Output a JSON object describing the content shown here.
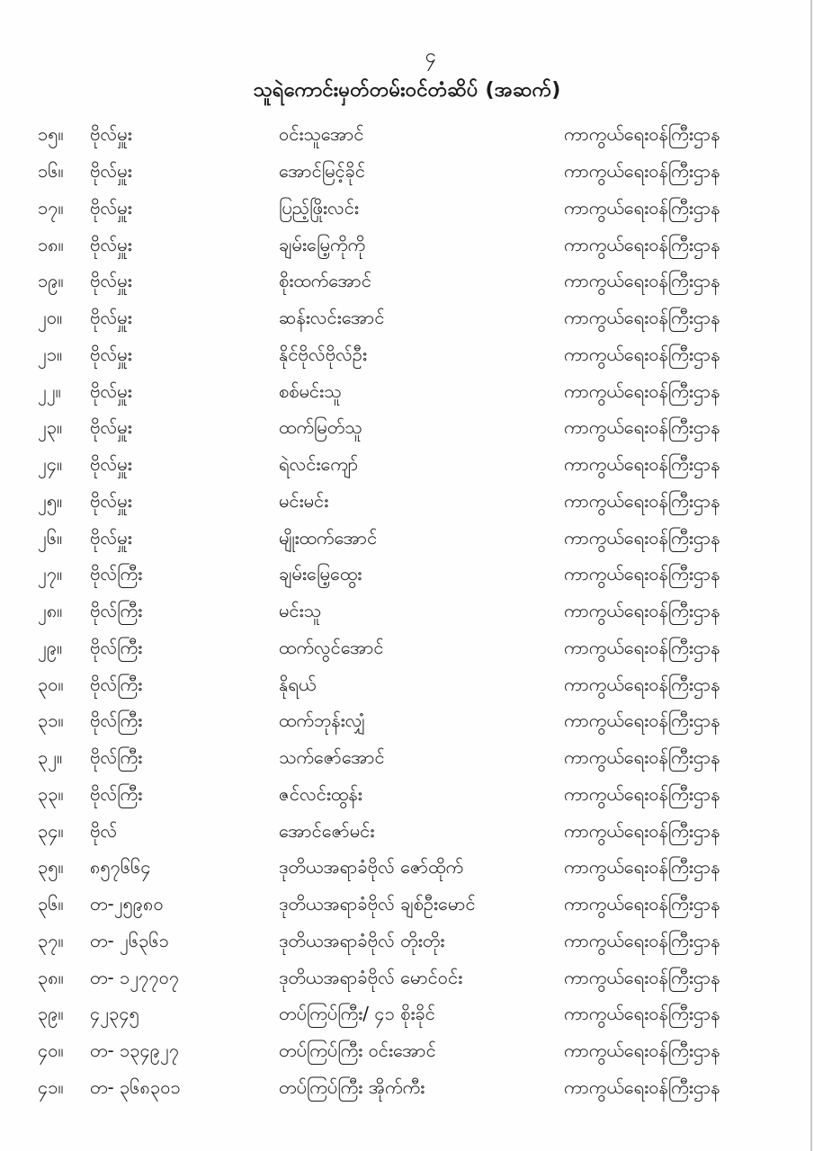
{
  "page": {
    "page_number": "၄",
    "title": "သူရဲကောင်းမှတ်တမ်းဝင်တံဆိပ် (အဆက်)"
  },
  "table": {
    "rows": [
      {
        "no": "၁၅။",
        "rank": "ဗိုလ်မှူး",
        "name": "ဝင်းသူအောင်",
        "ministry": "ကာကွယ်ရေးဝန်ကြီးဌာန"
      },
      {
        "no": "၁၆။",
        "rank": "ဗိုလ်မှူး",
        "name": "အောင်မြင့်ခိုင်",
        "ministry": "ကာကွယ်ရေးဝန်ကြီးဌာန"
      },
      {
        "no": "၁၇။",
        "rank": "ဗိုလ်မှူး",
        "name": "ပြည့်ဖြိုးလင်း",
        "ministry": "ကာကွယ်ရေးဝန်ကြီးဌာန"
      },
      {
        "no": "၁၈။",
        "rank": "ဗိုလ်မှူး",
        "name": "ချမ်းမြေ့ကိုကို",
        "ministry": "ကာကွယ်ရေးဝန်ကြီးဌာန"
      },
      {
        "no": "၁၉။",
        "rank": "ဗိုလ်မှူး",
        "name": "စိုးထက်အောင်",
        "ministry": "ကာကွယ်ရေးဝန်ကြီးဌာန"
      },
      {
        "no": "၂၀။",
        "rank": "ဗိုလ်မှူး",
        "name": "ဆန်းလင်းအောင်",
        "ministry": "ကာကွယ်ရေးဝန်ကြီးဌာန"
      },
      {
        "no": "၂၁။",
        "rank": "ဗိုလ်မှူး",
        "name": "နိုင်ဗိုလ်ဗိုလ်ဦး",
        "ministry": "ကာကွယ်ရေးဝန်ကြီးဌာန"
      },
      {
        "no": "၂၂။",
        "rank": "ဗိုလ်မှူး",
        "name": "စစ်မင်းသူ",
        "ministry": "ကာကွယ်ရေးဝန်ကြီးဌာန"
      },
      {
        "no": "၂၃။",
        "rank": "ဗိုလ်မှူး",
        "name": "ထက်မြတ်သူ",
        "ministry": "ကာကွယ်ရေးဝန်ကြီးဌာန"
      },
      {
        "no": "၂၄။",
        "rank": "ဗိုလ်မှူး",
        "name": "ရဲလင်းကျော်",
        "ministry": "ကာကွယ်ရေးဝန်ကြီးဌာန"
      },
      {
        "no": "၂၅။",
        "rank": "ဗိုလ်မှူး",
        "name": "မင်းမင်း",
        "ministry": "ကာကွယ်ရေးဝန်ကြီးဌာန"
      },
      {
        "no": "၂၆။",
        "rank": "ဗိုလ်မှူး",
        "name": "မျိုးထက်အောင်",
        "ministry": "ကာကွယ်ရေးဝန်ကြီးဌာန"
      },
      {
        "no": "၂၇။",
        "rank": "ဗိုလ်ကြီး",
        "name": "ချမ်းမြေ့ထွေး",
        "ministry": "ကာကွယ်ရေးဝန်ကြီးဌာန"
      },
      {
        "no": "၂၈။",
        "rank": "ဗိုလ်ကြီး",
        "name": "မင်းသူ",
        "ministry": "ကာကွယ်ရေးဝန်ကြီးဌာန"
      },
      {
        "no": "၂၉။",
        "rank": "ဗိုလ်ကြီး",
        "name": "ထက်လွင်အောင်",
        "ministry": "ကာကွယ်ရေးဝန်ကြီးဌာန"
      },
      {
        "no": "၃၀။",
        "rank": "ဗိုလ်ကြီး",
        "name": "နိုရယ်",
        "ministry": "ကာကွယ်ရေးဝန်ကြီးဌာန"
      },
      {
        "no": "၃၁။",
        "rank": "ဗိုလ်ကြီး",
        "name": "ထက်ဘုန်းလျှံ",
        "ministry": "ကာကွယ်ရေးဝန်ကြီးဌာန"
      },
      {
        "no": "၃၂။",
        "rank": "ဗိုလ်ကြီး",
        "name": "သက်ဇော်အောင်",
        "ministry": "ကာကွယ်ရေးဝန်ကြီးဌာန"
      },
      {
        "no": "၃၃။",
        "rank": "ဗိုလ်ကြီး",
        "name": "ဇင်လင်းထွန်း",
        "ministry": "ကာကွယ်ရေးဝန်ကြီးဌာန"
      },
      {
        "no": "၃၄။",
        "rank": "ဗိုလ်",
        "name": "အောင်ဇော်မင်း",
        "ministry": "ကာကွယ်ရေးဝန်ကြီးဌာန"
      },
      {
        "no": "၃၅။",
        "rank": "၈၅၇၆၆၄",
        "name": "ဒုတိယအရာခံဗိုလ် ဇော်ထိုက်",
        "ministry": "ကာကွယ်ရေးဝန်ကြီးဌာန"
      },
      {
        "no": "၃၆။",
        "rank": "တ-၂၅၉၈၀",
        "name": "ဒုတိယအရာခံဗိုလ် ချစ်ဦးမောင်",
        "ministry": "ကာကွယ်ရေးဝန်ကြီးဌာန"
      },
      {
        "no": "၃၇။",
        "rank": "တ- ၂၆၃၆၁",
        "name": "ဒုတိယအရာခံဗိုလ် တိုးတိုး",
        "ministry": "ကာကွယ်ရေးဝန်ကြီးဌာန"
      },
      {
        "no": "၃၈။",
        "rank": "တ- ၁၂၇၇၀၇",
        "name": "ဒုတိယအရာခံဗိုလ် မောင်ဝင်း",
        "ministry": "ကာကွယ်ရေးဝန်ကြီးဌာန"
      },
      {
        "no": "၃၉။",
        "rank": "၄၂၃၄၅",
        "name": "တပ်ကြပ်ကြီး/ ၄၁ စိုးခိုင်",
        "ministry": "ကာကွယ်ရေးဝန်ကြီးဌာန"
      },
      {
        "no": "၄၀။",
        "rank": "တ- ၁၃၄၉၂၇",
        "name": "တပ်ကြပ်ကြီး ဝင်းအောင်",
        "ministry": "ကာကွယ်ရေးဝန်ကြီးဌာန"
      },
      {
        "no": "၄၁။",
        "rank": "တ- ၃၆၈၃၀၁",
        "name": "တပ်ကြပ်ကြီး အိုက်ကီး",
        "ministry": "ကာကွယ်ရေးဝန်ကြီးဌာန"
      }
    ]
  }
}
